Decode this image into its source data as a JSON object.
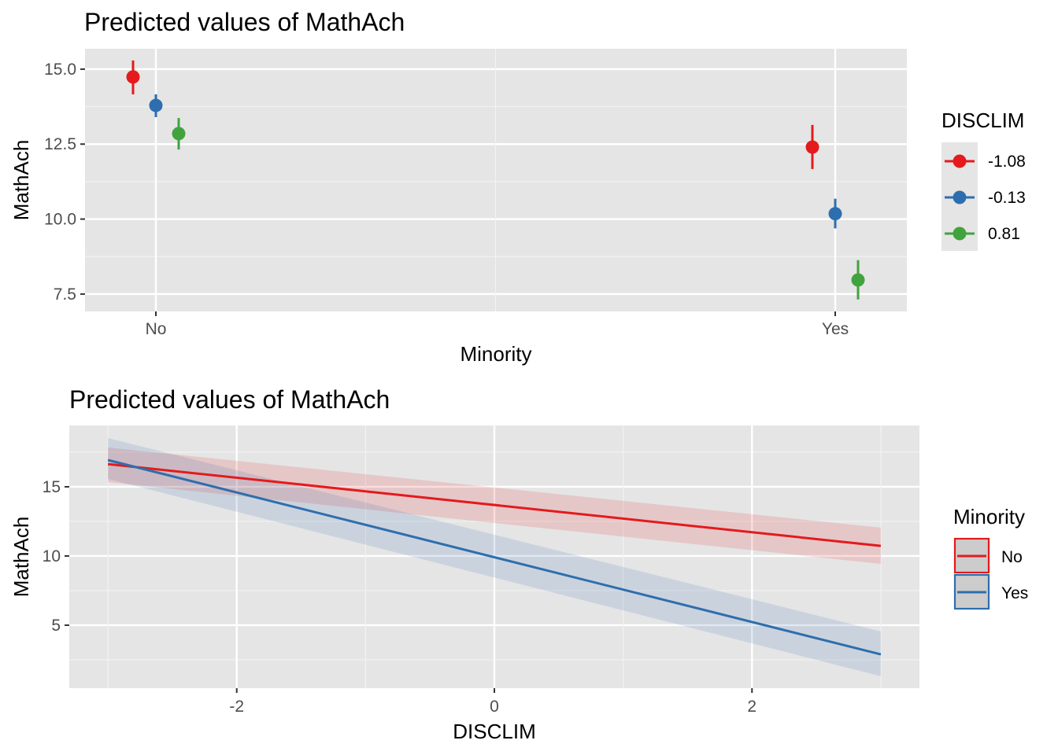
{
  "chart_data": [
    {
      "type": "scatter",
      "subtype": "pointrange",
      "title": "Predicted values of MathAch",
      "xlabel": "Minority",
      "ylabel": "MathAch",
      "categories": [
        "No",
        "Yes"
      ],
      "yticks": [
        7.5,
        10.0,
        12.5,
        15.0
      ],
      "ytick_labels": [
        "7.5",
        "10.0",
        "12.5",
        "15.0"
      ],
      "ylim": [
        6.92,
        15.68
      ],
      "grid": true,
      "legend": {
        "title": "DISCLIM",
        "position": "right",
        "entries": [
          "-1.08",
          "-0.13",
          "0.81"
        ]
      },
      "series": [
        {
          "name": "-1.08",
          "color": "#E41A1C",
          "values": [
            14.74,
            12.4
          ],
          "lower": [
            14.16,
            11.67
          ],
          "upper": [
            15.29,
            13.14
          ]
        },
        {
          "name": "-0.13",
          "color": "#2E6EAE",
          "values": [
            13.79,
            10.18
          ],
          "lower": [
            13.4,
            9.69
          ],
          "upper": [
            14.16,
            10.68
          ]
        },
        {
          "name": "0.81",
          "color": "#41A33E",
          "values": [
            12.85,
            7.97
          ],
          "lower": [
            12.32,
            7.32
          ],
          "upper": [
            13.37,
            8.63
          ]
        }
      ]
    },
    {
      "type": "line",
      "title": "Predicted values of MathAch",
      "xlabel": "DISCLIM",
      "ylabel": "MathAch",
      "xticks": [
        -2,
        0,
        2
      ],
      "xtick_labels": [
        "-2",
        "0",
        "2"
      ],
      "xlim": [
        -3.3,
        3.3
      ],
      "yticks": [
        5,
        10,
        15
      ],
      "ytick_labels": [
        "5",
        "10",
        "15"
      ],
      "ylim": [
        0.45,
        19.43
      ],
      "grid": true,
      "legend": {
        "title": "Minority",
        "position": "right",
        "entries": [
          "No",
          "Yes"
        ]
      },
      "series": [
        {
          "name": "No",
          "color": "#E41A1C",
          "x": [
            -3.0,
            3.0
          ],
          "y": [
            16.64,
            10.73
          ],
          "lower": [
            15.34,
            9.43
          ],
          "upper": [
            17.84,
            12.05
          ]
        },
        {
          "name": "Yes",
          "color": "#2E6EAE",
          "x": [
            -3.0,
            3.0
          ],
          "y": [
            16.93,
            2.89
          ],
          "lower": [
            15.57,
            1.31
          ],
          "upper": [
            18.52,
            4.55
          ]
        }
      ]
    }
  ]
}
